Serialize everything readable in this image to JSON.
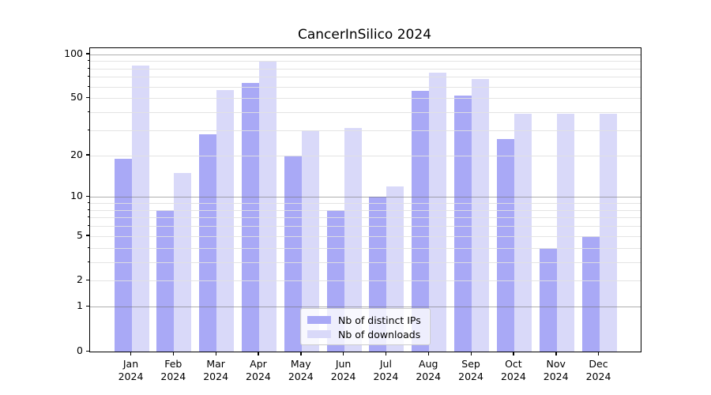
{
  "title": "CancerInSilico 2024",
  "colors": {
    "ips": "#a9a9f6",
    "downloads": "#d9d9f9",
    "grid_major": "#b0b0b0",
    "grid_minor": "#e6e6e6",
    "axis": "#000000",
    "legend_border": "#cccccc"
  },
  "legend": {
    "position": "lower center",
    "items": [
      {
        "label": "Nb of distinct IPs",
        "color_key": "ips"
      },
      {
        "label": "Nb of downloads",
        "color_key": "downloads"
      }
    ]
  },
  "x_axis": {
    "months": [
      "Jan",
      "Feb",
      "Mar",
      "Apr",
      "May",
      "Jun",
      "Jul",
      "Aug",
      "Sep",
      "Oct",
      "Nov",
      "Dec"
    ],
    "year": "2024"
  },
  "y_axis": {
    "tick_labels": [
      "0",
      "1",
      "2",
      "5",
      "10",
      "20",
      "50",
      "100"
    ],
    "tick_values": [
      0,
      1,
      2,
      5,
      10,
      20,
      50,
      100
    ]
  },
  "chart_data": {
    "type": "bar",
    "title": "CancerInSilico 2024",
    "categories": [
      "Jan 2024",
      "Feb 2024",
      "Mar 2024",
      "Apr 2024",
      "May 2024",
      "Jun 2024",
      "Jul 2024",
      "Aug 2024",
      "Sep 2024",
      "Oct 2024",
      "Nov 2024",
      "Dec 2024"
    ],
    "series": [
      {
        "name": "Nb of distinct IPs",
        "values": [
          19,
          8,
          28,
          64,
          20,
          8,
          10,
          56,
          52,
          26,
          4,
          5
        ]
      },
      {
        "name": "Nb of downloads",
        "values": [
          84,
          15,
          57,
          89,
          30,
          31,
          12,
          75,
          68,
          39,
          39,
          39
        ]
      }
    ],
    "xlabel": "",
    "ylabel": "",
    "yscale": "log1p",
    "ylim": [
      0,
      110
    ],
    "y_ticks": [
      0,
      1,
      2,
      5,
      10,
      20,
      50,
      100
    ],
    "grid_major_at": [
      1,
      10,
      100
    ],
    "grid_minor_at": [
      2,
      3,
      4,
      5,
      6,
      7,
      8,
      9,
      20,
      30,
      40,
      50,
      60,
      70,
      80,
      90
    ],
    "grid": "both",
    "legend_position": "lower center"
  }
}
